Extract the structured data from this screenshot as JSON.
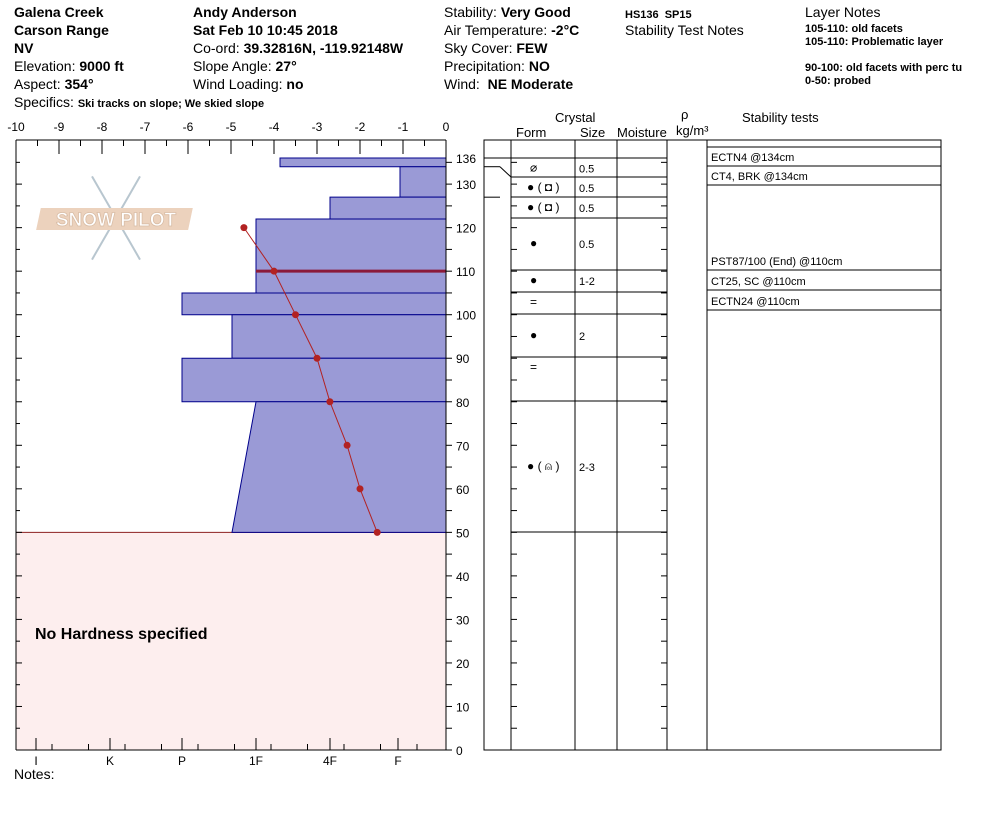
{
  "header": {
    "location": [
      "Galena Creek",
      "Carson Range",
      "NV"
    ],
    "elevation_label": "Elevation:",
    "elevation": "9000 ft",
    "aspect_label": "Aspect:",
    "aspect": "354°",
    "specifics_label": "Specifics:",
    "specifics": "Ski tracks on slope; We skied slope",
    "observer": "Andy Anderson",
    "datetime": "Sat Feb 10 10:45 2018",
    "coord_label": "Co-ord:",
    "coord": "39.32816N, -119.92148W",
    "slope_label": "Slope Angle:",
    "slope": "27°",
    "wind_loading_label": "Wind Loading:",
    "wind_loading": "no",
    "stability_label": "Stability:",
    "stability": "Very Good",
    "air_temp_label": "Air Temperature:",
    "air_temp": "-2°C",
    "sky_label": "Sky Cover:",
    "sky": "FEW",
    "precip_label": "Precipitation:",
    "precip": "NO",
    "wind_label": "Wind:",
    "wind": "NE Moderate",
    "hs_sp": "HS136  SP15",
    "stability_test_notes_label": "Stability Test Notes",
    "layer_notes_label": "Layer Notes",
    "layer_notes": [
      "105-110: old facets",
      "105-110: Problematic layer",
      "",
      "90-100: old facets with perc tu",
      "0-50: probed"
    ]
  },
  "logo": {
    "text": "SNOW PILOT"
  },
  "notes_label": "Notes:",
  "no_hardness_label": "No Hardness specified",
  "table_headers": {
    "crystal": "Crystal",
    "form": "Form",
    "size": "Size",
    "moisture": "Moisture",
    "rho": "ρ",
    "density_unit": "kg/m³",
    "stability_tests": "Stability tests"
  },
  "colors": {
    "hardness_fill": "#9a9ad6",
    "hardness_stroke": "#00008b",
    "temperature": "#b22222",
    "no_hardness_fill": "#fdeeee",
    "problem_layer": "#8b1a3a"
  },
  "chart_data": {
    "type": "snow-profile",
    "temperature_axis": {
      "label_ticks": [
        -10,
        -9,
        -8,
        -7,
        -6,
        -5,
        -4,
        -3,
        -2,
        -1,
        0
      ],
      "range": [
        -10,
        0
      ],
      "unit": "°C"
    },
    "depth_axis": {
      "ticks": [
        0,
        10,
        20,
        30,
        40,
        50,
        60,
        70,
        80,
        90,
        100,
        110,
        120,
        130,
        136
      ],
      "range": [
        0,
        136
      ],
      "unit": "cm"
    },
    "hardness_axis": {
      "ticks": [
        "I",
        "K",
        "P",
        "1F",
        "4F",
        "F"
      ]
    },
    "hardness_layers": [
      {
        "top": 136,
        "bottom": 134,
        "hardness_top": "1F+",
        "hardness_bottom": "1F+"
      },
      {
        "top": 134,
        "bottom": 127,
        "hardness_top": "F+",
        "hardness_bottom": "F+"
      },
      {
        "top": 127,
        "bottom": 122,
        "hardness_top": "4F",
        "hardness_bottom": "4F"
      },
      {
        "top": 122,
        "bottom": 105,
        "hardness_top": "1F",
        "hardness_bottom": "1F"
      },
      {
        "top": 105,
        "bottom": 100,
        "hardness_top": "P",
        "hardness_bottom": "P"
      },
      {
        "top": 100,
        "bottom": 90,
        "hardness_top": "1F-",
        "hardness_bottom": "1F-"
      },
      {
        "top": 90,
        "bottom": 80,
        "hardness_top": "P",
        "hardness_bottom": "P"
      },
      {
        "top": 80,
        "bottom": 50,
        "hardness_top": "1F",
        "hardness_bottom": "1F-"
      }
    ],
    "problem_layer_depth": 110,
    "no_hardness_range": [
      0,
      50
    ],
    "temperature_profile": [
      {
        "depth": 120,
        "temp": -4.7
      },
      {
        "depth": 110,
        "temp": -4.0
      },
      {
        "depth": 100,
        "temp": -3.5
      },
      {
        "depth": 90,
        "temp": -3.0
      },
      {
        "depth": 80,
        "temp": -2.7
      },
      {
        "depth": 70,
        "temp": -2.3
      },
      {
        "depth": 60,
        "temp": -2.0
      },
      {
        "depth": 50,
        "temp": -1.6
      }
    ]
  },
  "layers": [
    {
      "top": 136,
      "bottom": 134,
      "form": "decomposing",
      "form_text": "⌀",
      "size": "0.5"
    },
    {
      "top": 134,
      "bottom": 127,
      "form_text": "●  ( ◘ )",
      "size": "0.5"
    },
    {
      "top": 127,
      "bottom": 122,
      "form_text": "●  ( ◘ )",
      "size": "0.5"
    },
    {
      "top": 122,
      "bottom": 110,
      "form_text": "●",
      "size": "0.5"
    },
    {
      "top": 110,
      "bottom": 105,
      "form_text": "●",
      "size": "1-2"
    },
    {
      "top": 105,
      "bottom": 100,
      "form_text": "=",
      "size": ""
    },
    {
      "top": 100,
      "bottom": 90,
      "form_text": "●",
      "size": "2"
    },
    {
      "top": 90,
      "bottom": 80,
      "form_text": "=",
      "size": ""
    },
    {
      "top": 80,
      "bottom": 50,
      "form_text": "●  ( ⍝ )",
      "size": "2-3"
    }
  ],
  "stability_tests": [
    "ECTN4 @134cm",
    "CT4, BRK @134cm",
    "PST87/100 (End) @110cm",
    "CT25, SC @110cm",
    "ECTN24 @110cm"
  ]
}
